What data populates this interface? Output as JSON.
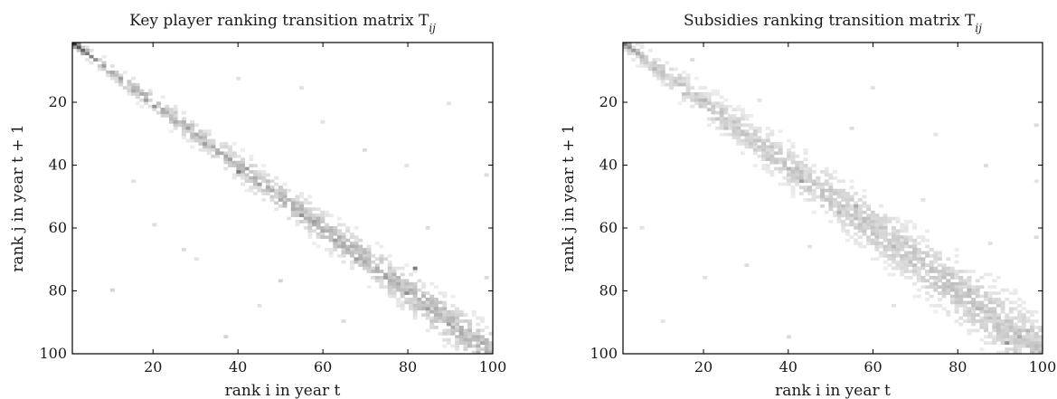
{
  "chart_data": [
    {
      "type": "heatmap",
      "title": "Key player ranking transition matrix T",
      "title_subscript": "ij",
      "xlabel": "rank i in year t",
      "ylabel": "rank j in year t + 1",
      "xlim": [
        1,
        100
      ],
      "ylim": [
        100,
        1
      ],
      "xticks": [
        20,
        40,
        60,
        80,
        100
      ],
      "yticks": [
        20,
        40,
        60,
        80,
        100
      ],
      "grid": false,
      "colormap": "greys",
      "n_ranks": 100,
      "diagonal_peak": 0.55,
      "band_halfwidth": [
        2,
        9
      ],
      "cells": [
        [
          1,
          1,
          0.85
        ],
        [
          2,
          2,
          0.7
        ],
        [
          3,
          3,
          0.65
        ],
        [
          2,
          1,
          0.45
        ],
        [
          1,
          2,
          0.4
        ],
        [
          4,
          4,
          0.55
        ],
        [
          3,
          4,
          0.35
        ],
        [
          4,
          3,
          0.3
        ],
        [
          5,
          5,
          0.5
        ],
        [
          6,
          6,
          0.45
        ],
        [
          8,
          8,
          0.4
        ],
        [
          10,
          10,
          0.35
        ],
        [
          12,
          12,
          0.4
        ],
        [
          15,
          16,
          0.35
        ],
        [
          18,
          19,
          0.4
        ],
        [
          20,
          21,
          0.45
        ],
        [
          22,
          22,
          0.35
        ],
        [
          25,
          26,
          0.35
        ],
        [
          28,
          28,
          0.4
        ],
        [
          30,
          30,
          0.35
        ],
        [
          32,
          33,
          0.4
        ],
        [
          35,
          36,
          0.35
        ],
        [
          38,
          38,
          0.4
        ],
        [
          40,
          42,
          0.55
        ],
        [
          42,
          41,
          0.4
        ],
        [
          45,
          46,
          0.4
        ],
        [
          48,
          48,
          0.35
        ],
        [
          50,
          51,
          0.35
        ],
        [
          53,
          54,
          0.35
        ],
        [
          55,
          56,
          0.45
        ],
        [
          58,
          58,
          0.4
        ],
        [
          60,
          61,
          0.35
        ],
        [
          63,
          64,
          0.4
        ],
        [
          65,
          66,
          0.35
        ],
        [
          68,
          70,
          0.4
        ],
        [
          70,
          71,
          0.35
        ],
        [
          73,
          73,
          0.35
        ],
        [
          75,
          76,
          0.4
        ],
        [
          78,
          78,
          0.35
        ],
        [
          80,
          81,
          0.45
        ],
        [
          82,
          73,
          0.55
        ],
        [
          85,
          86,
          0.4
        ],
        [
          88,
          88,
          0.3
        ],
        [
          90,
          91,
          0.4
        ],
        [
          93,
          94,
          0.35
        ],
        [
          95,
          96,
          0.3
        ],
        [
          98,
          97,
          0.35
        ],
        [
          100,
          100,
          0.3
        ]
      ],
      "outliers": [
        [
          10,
          80,
          0.18
        ],
        [
          20,
          59,
          0.15
        ],
        [
          27,
          67,
          0.15
        ],
        [
          37,
          95,
          0.18
        ],
        [
          50,
          77,
          0.18
        ],
        [
          60,
          26,
          0.12
        ],
        [
          99,
          43,
          0.15
        ],
        [
          99,
          76,
          0.15
        ],
        [
          90,
          20,
          0.12
        ],
        [
          70,
          35,
          0.15
        ],
        [
          40,
          12,
          0.12
        ],
        [
          15,
          45,
          0.12
        ],
        [
          80,
          40,
          0.12
        ],
        [
          65,
          90,
          0.15
        ],
        [
          30,
          70,
          0.12
        ],
        [
          55,
          15,
          0.12
        ],
        [
          85,
          60,
          0.15
        ],
        [
          45,
          85,
          0.12
        ]
      ]
    },
    {
      "type": "heatmap",
      "title": "Subsidies ranking transition matrix T",
      "title_subscript": "ij",
      "xlabel": "rank i in year t",
      "ylabel": "rank j in year t + 1",
      "xlim": [
        1,
        100
      ],
      "ylim": [
        100,
        1
      ],
      "xticks": [
        20,
        40,
        60,
        80,
        100
      ],
      "yticks": [
        20,
        40,
        60,
        80,
        100
      ],
      "grid": false,
      "colormap": "greys",
      "n_ranks": 100,
      "diagonal_peak": 0.4,
      "band_halfwidth": [
        3,
        14
      ],
      "cells": [
        [
          1,
          1,
          0.55
        ],
        [
          2,
          2,
          0.45
        ],
        [
          3,
          3,
          0.4
        ],
        [
          2,
          1,
          0.35
        ],
        [
          1,
          2,
          0.3
        ],
        [
          4,
          4,
          0.35
        ],
        [
          5,
          5,
          0.3
        ],
        [
          8,
          9,
          0.3
        ],
        [
          10,
          10,
          0.25
        ],
        [
          15,
          17,
          0.25
        ],
        [
          20,
          19,
          0.3
        ],
        [
          25,
          28,
          0.25
        ],
        [
          30,
          30,
          0.25
        ],
        [
          35,
          38,
          0.25
        ],
        [
          40,
          41,
          0.3
        ],
        [
          43,
          45,
          0.4
        ],
        [
          48,
          50,
          0.25
        ],
        [
          52,
          55,
          0.3
        ],
        [
          56,
          53,
          0.35
        ],
        [
          60,
          62,
          0.25
        ],
        [
          65,
          66,
          0.3
        ],
        [
          70,
          72,
          0.25
        ],
        [
          75,
          78,
          0.25
        ],
        [
          80,
          82,
          0.25
        ],
        [
          83,
          80,
          0.3
        ],
        [
          85,
          86,
          0.3
        ],
        [
          90,
          91,
          0.25
        ],
        [
          92,
          97,
          0.45
        ],
        [
          95,
          95,
          0.35
        ],
        [
          97,
          93,
          0.3
        ],
        [
          100,
          100,
          0.3
        ]
      ],
      "outliers": [
        [
          17,
          6,
          0.15
        ],
        [
          33,
          19,
          0.12
        ],
        [
          55,
          28,
          0.15
        ],
        [
          99,
          27,
          0.15
        ],
        [
          99,
          45,
          0.12
        ],
        [
          99,
          63,
          0.15
        ],
        [
          72,
          51,
          0.12
        ],
        [
          20,
          76,
          0.12
        ],
        [
          30,
          72,
          0.15
        ],
        [
          10,
          90,
          0.12
        ],
        [
          45,
          66,
          0.12
        ],
        [
          87,
          40,
          0.15
        ],
        [
          60,
          15,
          0.12
        ],
        [
          75,
          30,
          0.12
        ],
        [
          5,
          60,
          0.12
        ],
        [
          40,
          95,
          0.15
        ],
        [
          65,
          85,
          0.12
        ],
        [
          88,
          65,
          0.12
        ]
      ]
    }
  ]
}
